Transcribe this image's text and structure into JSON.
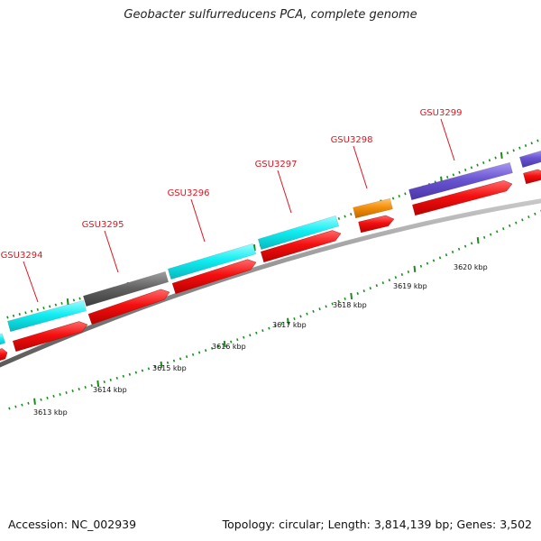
{
  "title": "Geobacter sulfurreducens PCA, complete genome",
  "footer": {
    "accession": "Accession: NC_002939",
    "summary": "Topology: circular; Length: 3,814,139 bp; Genes: 3,502"
  },
  "colors": {
    "strand_red": "#f40f0f",
    "cyan": "#12eef2",
    "gray": "#646464",
    "orange": "#f5900c",
    "purple": "#6a55d2",
    "tick_green": "#1d8a1d",
    "backbone": "#8a8a8a",
    "label_red": "#e0141e"
  },
  "genes": [
    {
      "id": "GSU3294",
      "color": "cyan"
    },
    {
      "id": "GSU3295",
      "color": "gray"
    },
    {
      "id": "GSU3296",
      "color": "cyan"
    },
    {
      "id": "GSU3297",
      "color": "cyan"
    },
    {
      "id": "GSU3298",
      "color": "orange"
    },
    {
      "id": "GSU3299",
      "color": "purple"
    }
  ],
  "kbp_labels": [
    "3613 kbp",
    "3614 kbp",
    "3615 kbp",
    "3616 kbp",
    "3617 kbp",
    "3618 kbp",
    "3619 kbp",
    "3620 kbp"
  ]
}
